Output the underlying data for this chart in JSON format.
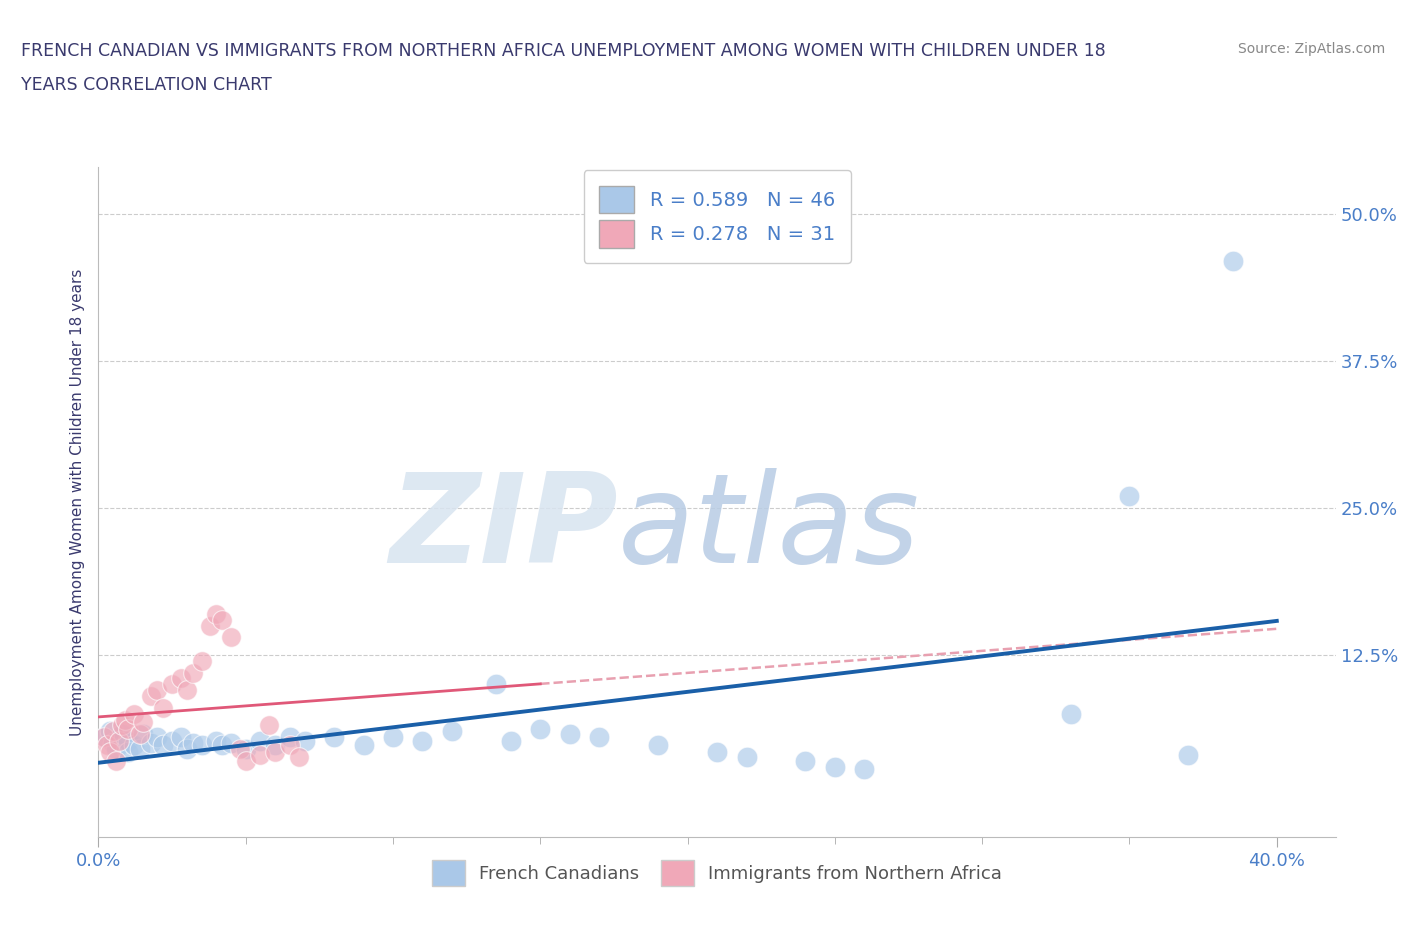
{
  "title_line1": "FRENCH CANADIAN VS IMMIGRANTS FROM NORTHERN AFRICA UNEMPLOYMENT AMONG WOMEN WITH CHILDREN UNDER 18",
  "title_line2": "YEARS CORRELATION CHART",
  "source": "Source: ZipAtlas.com",
  "ylabel": "Unemployment Among Women with Children Under 18 years",
  "yticks": [
    0.0,
    0.125,
    0.25,
    0.375,
    0.5
  ],
  "ytick_labels": [
    "",
    "12.5%",
    "25.0%",
    "37.5%",
    "50.0%"
  ],
  "xlim": [
    0.0,
    0.42
  ],
  "ylim": [
    -0.03,
    0.54
  ],
  "R_blue": 0.589,
  "N_blue": 46,
  "R_pink": 0.278,
  "N_pink": 31,
  "blue_dot_color": "#aac8e8",
  "pink_dot_color": "#f0a8b8",
  "blue_line_color": "#1a5fa8",
  "pink_line_color": "#e05878",
  "pink_dash_color": "#e8a0b0",
  "watermark_zip": "ZIP",
  "watermark_atlas": "atlas",
  "title_color": "#3a3a6e",
  "axis_label_color": "#3a3a6e",
  "tick_label_color": "#4a7ec8",
  "grid_color": "#cccccc",
  "blue_scatter": [
    [
      0.002,
      0.055
    ],
    [
      0.004,
      0.06
    ],
    [
      0.005,
      0.05
    ],
    [
      0.006,
      0.045
    ],
    [
      0.008,
      0.058
    ],
    [
      0.01,
      0.052
    ],
    [
      0.01,
      0.042
    ],
    [
      0.012,
      0.048
    ],
    [
      0.014,
      0.045
    ],
    [
      0.015,
      0.058
    ],
    [
      0.018,
      0.05
    ],
    [
      0.02,
      0.055
    ],
    [
      0.022,
      0.048
    ],
    [
      0.025,
      0.052
    ],
    [
      0.028,
      0.055
    ],
    [
      0.03,
      0.045
    ],
    [
      0.032,
      0.05
    ],
    [
      0.035,
      0.048
    ],
    [
      0.04,
      0.052
    ],
    [
      0.042,
      0.048
    ],
    [
      0.045,
      0.05
    ],
    [
      0.05,
      0.045
    ],
    [
      0.055,
      0.052
    ],
    [
      0.06,
      0.048
    ],
    [
      0.065,
      0.055
    ],
    [
      0.07,
      0.052
    ],
    [
      0.08,
      0.055
    ],
    [
      0.09,
      0.048
    ],
    [
      0.1,
      0.055
    ],
    [
      0.11,
      0.052
    ],
    [
      0.12,
      0.06
    ],
    [
      0.135,
      0.1
    ],
    [
      0.14,
      0.052
    ],
    [
      0.15,
      0.062
    ],
    [
      0.16,
      0.058
    ],
    [
      0.17,
      0.055
    ],
    [
      0.19,
      0.048
    ],
    [
      0.21,
      0.042
    ],
    [
      0.22,
      0.038
    ],
    [
      0.24,
      0.035
    ],
    [
      0.25,
      0.03
    ],
    [
      0.26,
      0.028
    ],
    [
      0.33,
      0.075
    ],
    [
      0.35,
      0.26
    ],
    [
      0.37,
      0.04
    ],
    [
      0.385,
      0.46
    ]
  ],
  "pink_scatter": [
    [
      0.002,
      0.055
    ],
    [
      0.003,
      0.048
    ],
    [
      0.004,
      0.042
    ],
    [
      0.005,
      0.06
    ],
    [
      0.006,
      0.035
    ],
    [
      0.007,
      0.052
    ],
    [
      0.008,
      0.065
    ],
    [
      0.009,
      0.07
    ],
    [
      0.01,
      0.062
    ],
    [
      0.012,
      0.075
    ],
    [
      0.014,
      0.058
    ],
    [
      0.015,
      0.068
    ],
    [
      0.018,
      0.09
    ],
    [
      0.02,
      0.095
    ],
    [
      0.022,
      0.08
    ],
    [
      0.025,
      0.1
    ],
    [
      0.028,
      0.105
    ],
    [
      0.03,
      0.095
    ],
    [
      0.032,
      0.11
    ],
    [
      0.035,
      0.12
    ],
    [
      0.038,
      0.15
    ],
    [
      0.04,
      0.16
    ],
    [
      0.042,
      0.155
    ],
    [
      0.045,
      0.14
    ],
    [
      0.048,
      0.045
    ],
    [
      0.05,
      0.035
    ],
    [
      0.055,
      0.04
    ],
    [
      0.058,
      0.065
    ],
    [
      0.06,
      0.042
    ],
    [
      0.065,
      0.048
    ],
    [
      0.068,
      0.038
    ]
  ]
}
